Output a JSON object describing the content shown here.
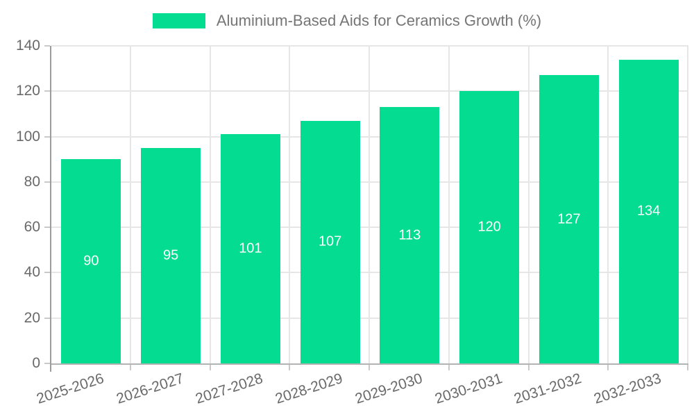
{
  "legend": {
    "label": "Aluminium-Based Aids for Ceramics Growth (%)",
    "swatch_color": "#03DC91"
  },
  "chart_data": {
    "type": "bar",
    "title": "Aluminium-Based Aids for Ceramics Growth (%)",
    "categories": [
      "2025-2026",
      "2026-2027",
      "2027-2028",
      "2028-2029",
      "2029-2030",
      "2030-2031",
      "2031-2032",
      "2032-2033"
    ],
    "values": [
      90,
      95,
      101,
      107,
      113,
      120,
      127,
      134
    ],
    "series": [
      {
        "name": "Aluminium-Based Aids for Ceramics Growth (%)",
        "values": [
          90,
          95,
          101,
          107,
          113,
          120,
          127,
          134
        ]
      }
    ],
    "xlabel": "",
    "ylabel": "",
    "ylim": [
      0,
      140
    ],
    "yticks": [
      0,
      20,
      40,
      60,
      80,
      100,
      120,
      140
    ],
    "grid": true,
    "legend_position": "top-center",
    "x_label_rotation_deg": -18,
    "colors": {
      "bar": "#03DC91",
      "value_label": "#ffffff",
      "axis_text": "#696969",
      "legend_text": "#757575",
      "gridline": "#e6e6e6",
      "y_axis_line": "#9c9c9c",
      "x_axis_line": "#b3b3b3"
    }
  }
}
